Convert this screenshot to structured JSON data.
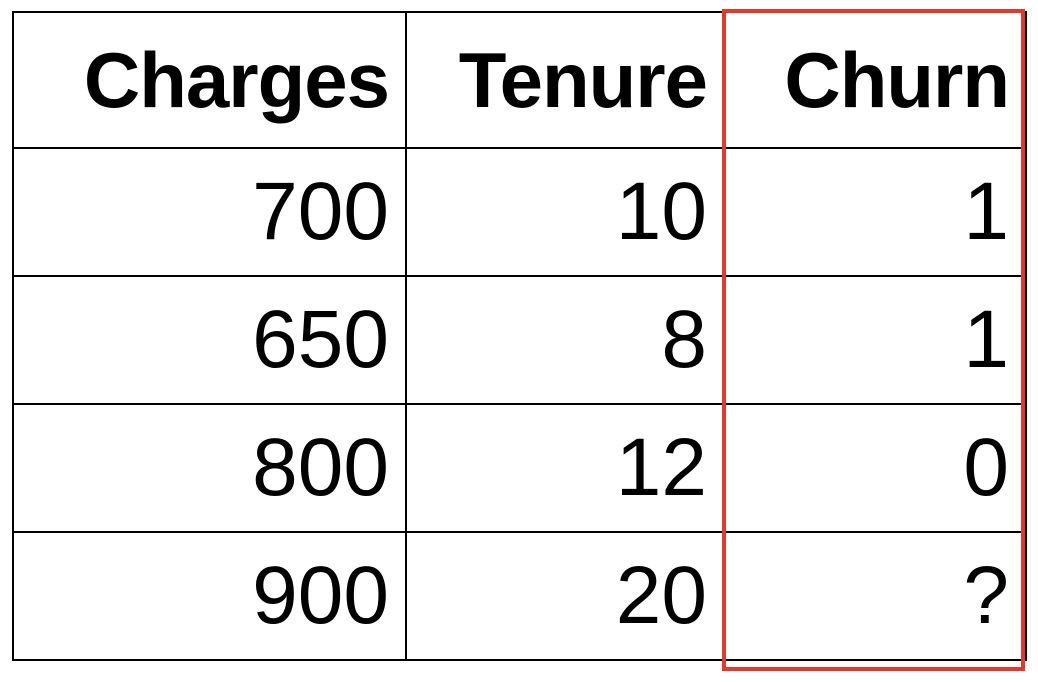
{
  "table": {
    "columns": [
      "Charges",
      "Tenure",
      "Churn"
    ],
    "rows": [
      [
        "700",
        "10",
        "1"
      ],
      [
        "650",
        "8",
        "1"
      ],
      [
        "800",
        "12",
        "0"
      ],
      [
        "900",
        "20",
        "?"
      ]
    ]
  },
  "highlight": {
    "column": "Churn",
    "color": "#e03a2e"
  }
}
